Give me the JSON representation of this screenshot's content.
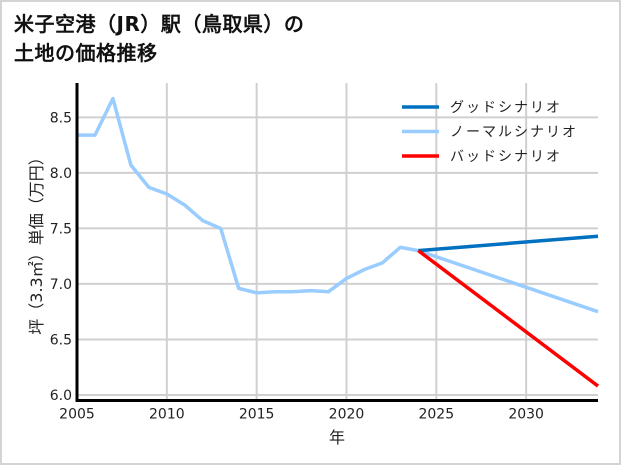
{
  "title": {
    "line1": "米子空港（JR）駅（鳥取県）の",
    "line2": "土地の価格推移"
  },
  "colors": {
    "good": "#0070c0",
    "normal": "#99ccff",
    "bad": "#ff0000",
    "grid": "#d0d0d0",
    "axis": "#000000"
  },
  "chart_data": {
    "type": "line",
    "title": "米子空港（JR）駅（鳥取県）の土地の価格推移",
    "xlabel": "年",
    "ylabel": "坪（3.3㎡）単価（万円）",
    "xlim": [
      2005,
      2034
    ],
    "ylim": [
      5.95,
      8.81
    ],
    "xticks": [
      2005,
      2010,
      2015,
      2020,
      2025,
      2030
    ],
    "yticks": [
      6.0,
      6.5,
      7.0,
      7.5,
      8.0,
      8.5
    ],
    "ytick_labels": [
      "6.0",
      "6.5",
      "7.0",
      "7.5",
      "8.0",
      "8.5"
    ],
    "grid": true,
    "legend_position": "upper right",
    "series": [
      {
        "key": "good",
        "name": "グッドシナリオ",
        "x": [
          2024,
          2034
        ],
        "values": [
          7.3,
          7.43
        ]
      },
      {
        "key": "normal",
        "name": "ノーマルシナリオ",
        "x": [
          2005,
          2006,
          2007,
          2008,
          2009,
          2010,
          2011,
          2012,
          2013,
          2014,
          2015,
          2016,
          2017,
          2018,
          2019,
          2020,
          2021,
          2022,
          2023,
          2024,
          2034
        ],
        "values": [
          8.34,
          8.34,
          8.67,
          8.07,
          7.87,
          7.81,
          7.71,
          7.57,
          7.5,
          6.96,
          6.92,
          6.93,
          6.93,
          6.94,
          6.93,
          7.05,
          7.13,
          7.19,
          7.33,
          7.3,
          6.75
        ]
      },
      {
        "key": "bad",
        "name": "バッドシナリオ",
        "x": [
          2024,
          2034
        ],
        "values": [
          7.3,
          6.08
        ]
      }
    ]
  }
}
